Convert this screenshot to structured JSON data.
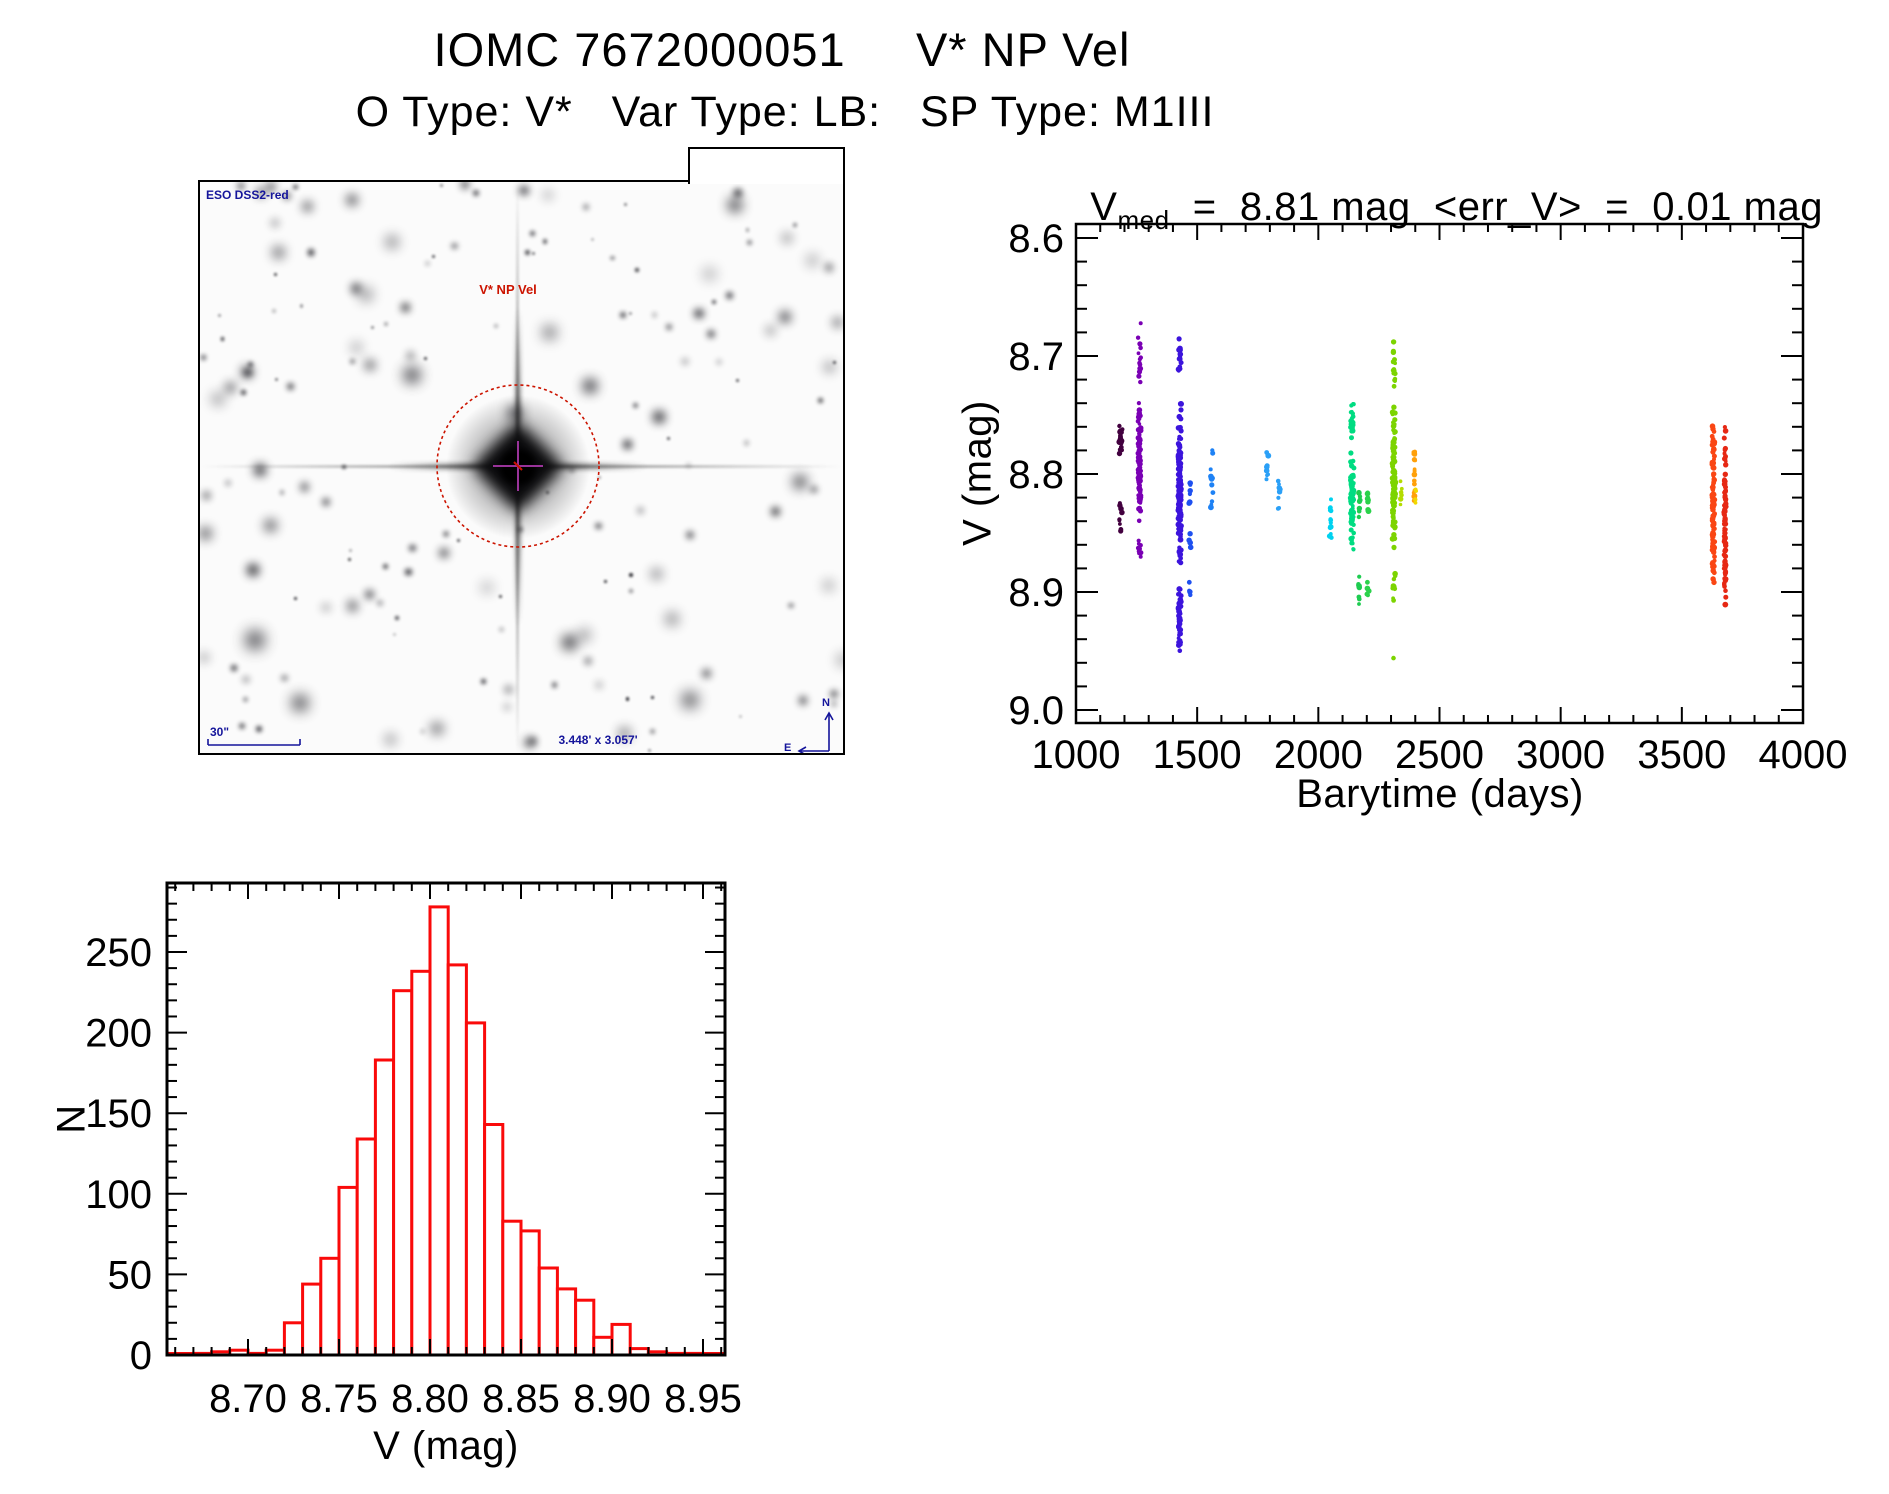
{
  "header": {
    "title": "IOMC 7672000051     V* NP Vel",
    "subtitle": "O Type: V*   Var Type: LB:   SP Type: M1III"
  },
  "starfield": {
    "survey_label": "ESO DSS2-red",
    "target_label": "V* NP Vel",
    "scale_label": "30\"",
    "fov_label": "3.448' x 3.057'",
    "compass": {
      "north": "N",
      "east": "E"
    },
    "annotation_color": "#15159b",
    "marker_color": "#cc1400",
    "cross_color": "#993399"
  },
  "chart_data": [
    {
      "id": "lightcurve",
      "type": "scatter",
      "title": {
        "v": "V",
        "sub": "med",
        "rest": "  =  8.81 mag  <err_V>  =  0.01 mag"
      },
      "v_med_mag": 8.81,
      "err_v_mag": 0.01,
      "xlabel": "Barytime (days)",
      "ylabel": "V (mag)",
      "xlim": [
        1000,
        4000
      ],
      "ylim": [
        8.6,
        9.0
      ],
      "y_axis_inverted": true,
      "grid": false,
      "xticks": [
        1000,
        1500,
        2000,
        2500,
        3000,
        3500,
        4000
      ],
      "x_minor_step": 100,
      "yticks": [
        "8.6",
        "8.7",
        "8.8",
        "8.9",
        "9.0"
      ],
      "y_minor_step": 0.02,
      "clusters": [
        {
          "x_days": 1185,
          "x_spread": 14,
          "color": "#42003f",
          "groups": [
            {
              "v_min": 8.757,
              "v_max": 8.787,
              "n": 26
            },
            {
              "v_min": 8.82,
              "v_max": 8.858,
              "n": 9
            }
          ]
        },
        {
          "x_days": 1262,
          "x_spread": 12,
          "color": "#7a00b4",
          "groups": [
            {
              "v_min": 8.662,
              "v_max": 8.732,
              "n": 13
            },
            {
              "v_min": 8.733,
              "v_max": 8.845,
              "n": 95
            },
            {
              "v_min": 8.846,
              "v_max": 8.876,
              "n": 10
            }
          ]
        },
        {
          "x_days": 1428,
          "x_spread": 12,
          "color": "#3c14dc",
          "groups": [
            {
              "v_min": 8.675,
              "v_max": 8.733,
              "n": 16
            },
            {
              "v_min": 8.734,
              "v_max": 8.886,
              "n": 170
            },
            {
              "v_min": 8.887,
              "v_max": 8.955,
              "n": 38
            }
          ]
        },
        {
          "x_days": 1470,
          "x_spread": 8,
          "color": "#1e50f0",
          "groups": [
            {
              "v_min": 8.802,
              "v_max": 8.828,
              "n": 6
            },
            {
              "v_min": 8.846,
              "v_max": 8.872,
              "n": 5
            },
            {
              "v_min": 8.886,
              "v_max": 8.912,
              "n": 4
            }
          ]
        },
        {
          "x_days": 1560,
          "x_spread": 10,
          "color": "#1e82f5",
          "groups": [
            {
              "v_min": 8.776,
              "v_max": 8.836,
              "n": 13
            }
          ]
        },
        {
          "x_days": 1790,
          "x_spread": 8,
          "color": "#2ba0f7",
          "groups": [
            {
              "v_min": 8.77,
              "v_max": 8.808,
              "n": 10
            }
          ]
        },
        {
          "x_days": 1838,
          "x_spread": 8,
          "color": "#2ba0f7",
          "groups": [
            {
              "v_min": 8.795,
              "v_max": 8.836,
              "n": 9
            }
          ]
        },
        {
          "x_days": 2050,
          "x_spread": 8,
          "color": "#00d2f0",
          "groups": [
            {
              "v_min": 8.806,
              "v_max": 8.856,
              "n": 13
            }
          ]
        },
        {
          "x_days": 2140,
          "x_spread": 14,
          "color": "#00dc82",
          "groups": [
            {
              "v_min": 8.736,
              "v_max": 8.776,
              "n": 22
            },
            {
              "v_min": 8.777,
              "v_max": 8.868,
              "n": 85
            }
          ]
        },
        {
          "x_days": 2168,
          "x_spread": 8,
          "color": "#1ecc50",
          "groups": [
            {
              "v_min": 8.81,
              "v_max": 8.84,
              "n": 8
            },
            {
              "v_min": 8.875,
              "v_max": 8.915,
              "n": 10
            }
          ]
        },
        {
          "x_days": 2205,
          "x_spread": 8,
          "color": "#2bd24b",
          "groups": [
            {
              "v_min": 8.812,
              "v_max": 8.838,
              "n": 9
            },
            {
              "v_min": 8.88,
              "v_max": 8.912,
              "n": 6
            }
          ]
        },
        {
          "x_days": 2312,
          "x_spread": 12,
          "color": "#7cd400",
          "groups": [
            {
              "v_min": 8.676,
              "v_max": 8.734,
              "n": 16
            },
            {
              "v_min": 8.735,
              "v_max": 8.872,
              "n": 125
            },
            {
              "v_min": 8.874,
              "v_max": 8.912,
              "n": 9
            },
            {
              "v_min": 8.953,
              "v_max": 8.958,
              "n": 1
            }
          ]
        },
        {
          "x_days": 2342,
          "x_spread": 6,
          "color": "#b4dc00",
          "groups": [
            {
              "v_min": 8.8,
              "v_max": 8.835,
              "n": 6
            }
          ]
        },
        {
          "x_days": 2396,
          "x_spread": 8,
          "color": "#ffa00a",
          "groups": [
            {
              "v_min": 8.764,
              "v_max": 8.832,
              "n": 18
            }
          ]
        },
        {
          "x_days": 2402,
          "x_spread": 4,
          "color": "#f0d800",
          "groups": [
            {
              "v_min": 8.81,
              "v_max": 8.832,
              "n": 4
            }
          ]
        },
        {
          "x_days": 3630,
          "x_spread": 10,
          "color": "#fa4614",
          "groups": [
            {
              "v_min": 8.742,
              "v_max": 8.908,
              "n": 130
            }
          ]
        },
        {
          "x_days": 3678,
          "x_spread": 8,
          "color": "#e62814",
          "groups": [
            {
              "v_min": 8.757,
              "v_max": 8.92,
              "n": 110
            }
          ]
        }
      ]
    },
    {
      "id": "histogram",
      "type": "histogram",
      "xlabel": "V (mag)",
      "ylabel": "N",
      "bar_color": "#fa0a0a",
      "bin_start": 8.67,
      "bin_width": 0.01,
      "counts": [
        1,
        2,
        3,
        1,
        3,
        20,
        44,
        60,
        104,
        134,
        183,
        226,
        238,
        278,
        242,
        206,
        143,
        83,
        77,
        54,
        41,
        34,
        11,
        19,
        4,
        2,
        1,
        1
      ],
      "xticks": [
        "8.70",
        "8.75",
        "8.80",
        "8.85",
        "8.90",
        "8.95"
      ],
      "x_minor_step": 0.01,
      "yticks": [
        0,
        50,
        100,
        150,
        200,
        250
      ],
      "y_minor_step": 10,
      "xlim": [
        8.655,
        8.962
      ],
      "ylim": [
        0,
        293
      ],
      "grid": false
    }
  ]
}
